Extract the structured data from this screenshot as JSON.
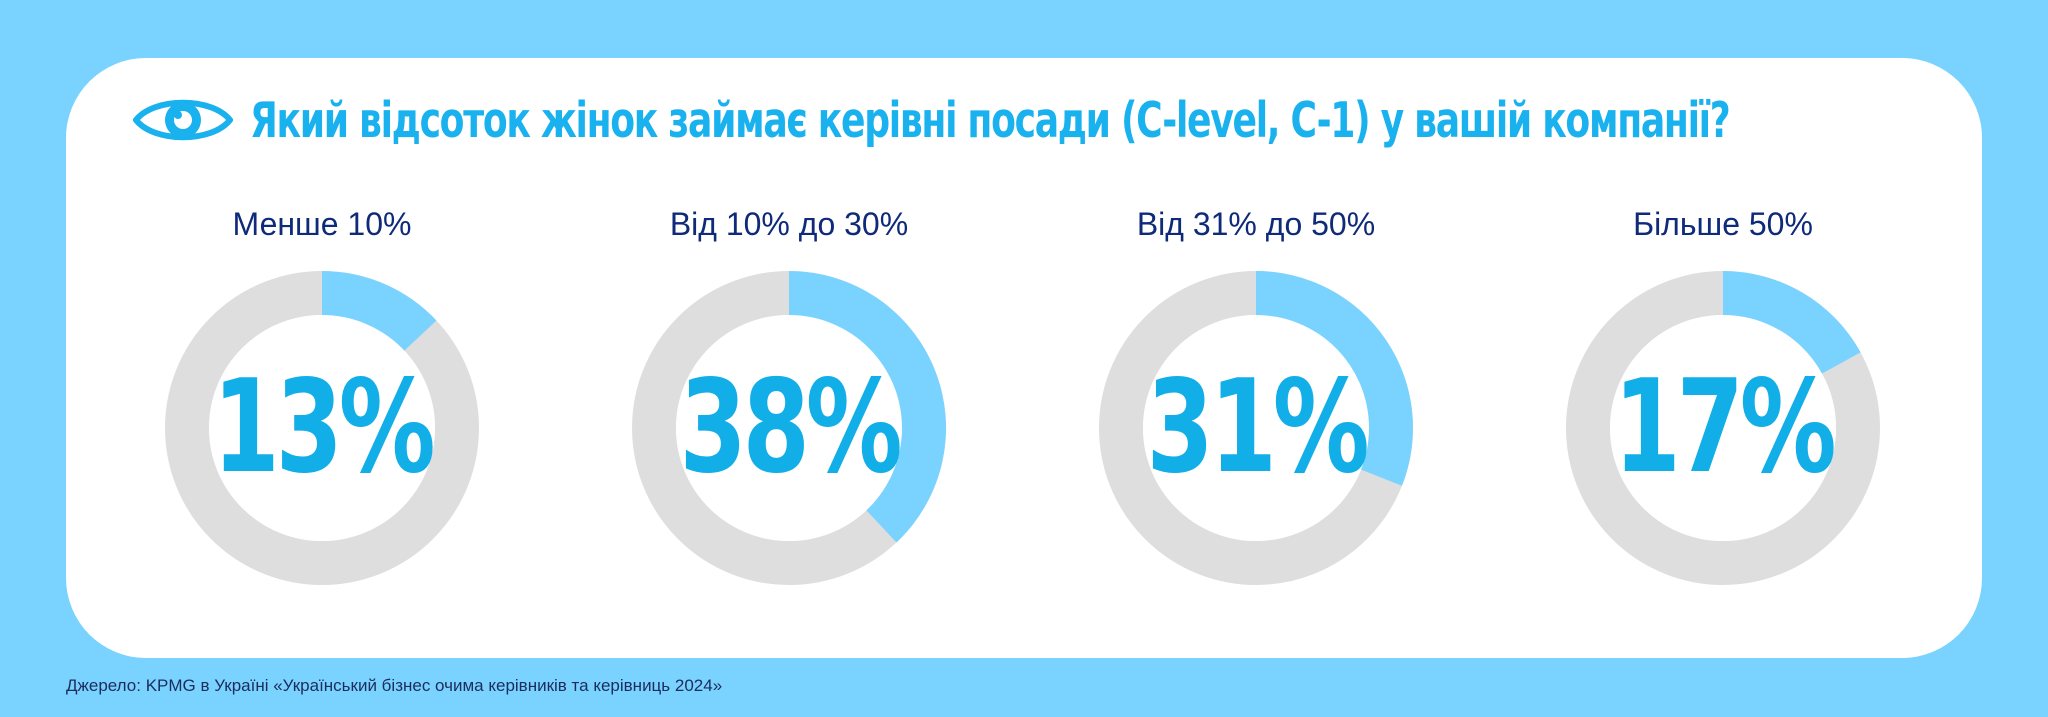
{
  "title": "Який відсоток жінок займає керівні посади (C-level, C-1) у вашій компанії?",
  "icon": "eye-icon",
  "colors": {
    "background": "#7ad3ff",
    "card": "#ffffff",
    "title": "#19b1ee",
    "accent_segment": "#7ad3ff",
    "remaining_track": "#dedede",
    "value_text": "#12aee8",
    "category_text": "#0e2a78"
  },
  "chart_data": [
    {
      "type": "pie",
      "variant": "donut",
      "label": "Менше 10%",
      "value": 13,
      "value_label": "13%",
      "max": 100
    },
    {
      "type": "pie",
      "variant": "donut",
      "label": "Від 10% до 30%",
      "value": 38,
      "value_label": "38%",
      "max": 100
    },
    {
      "type": "pie",
      "variant": "donut",
      "label": "Від 31% до 50%",
      "value": 31,
      "value_label": "31%",
      "max": 100
    },
    {
      "type": "pie",
      "variant": "donut",
      "label": "Більше 50%",
      "value": 17,
      "value_label": "17%",
      "max": 100
    }
  ],
  "source": "Джерело: KPMG в Україні «Український бізнес очима керівників та керівниць 2024»"
}
